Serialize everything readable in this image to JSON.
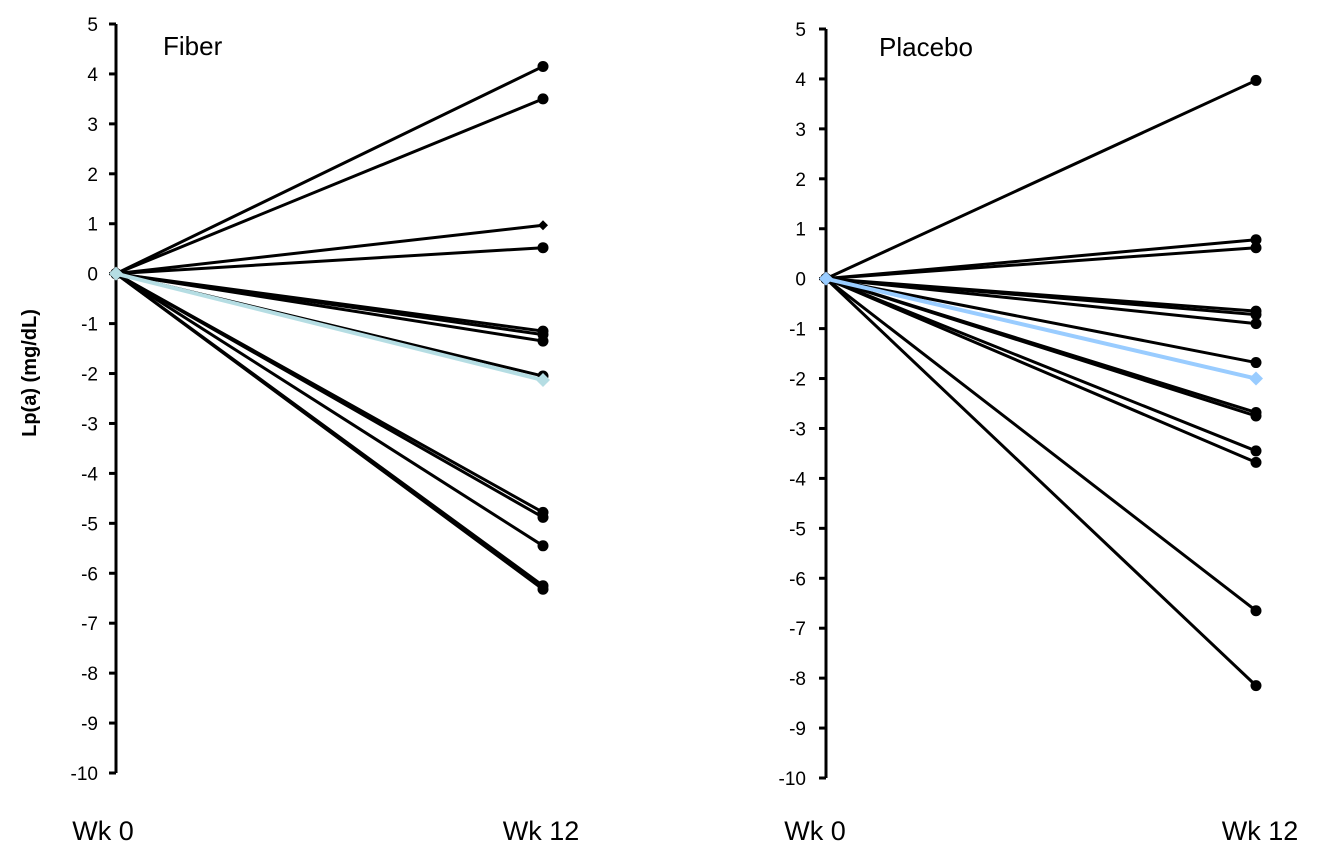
{
  "chart_data": [
    {
      "type": "line",
      "title": "Fiber",
      "ylabel": "Lp(a) (mg/dL)",
      "xlabel": "",
      "categories": [
        "Wk 0",
        "Wk 12"
      ],
      "ylim": [
        -10,
        5
      ],
      "yticks": [
        5,
        4,
        3,
        2,
        1,
        0,
        -1,
        -2,
        -3,
        -4,
        -5,
        -6,
        -7,
        -8,
        -9,
        -10
      ],
      "grid": false,
      "colors": {
        "individual": "#000000",
        "mean": "#b5dde3"
      },
      "series": [
        {
          "values": [
            0,
            4.15
          ],
          "marker": "circle"
        },
        {
          "values": [
            0,
            3.5
          ],
          "marker": "circle"
        },
        {
          "values": [
            0,
            0.97
          ],
          "marker": "diamond"
        },
        {
          "values": [
            0,
            0.52
          ],
          "marker": "circle"
        },
        {
          "values": [
            0,
            -1.15
          ],
          "marker": "circle"
        },
        {
          "values": [
            0,
            -1.22
          ],
          "marker": "circle"
        },
        {
          "values": [
            0,
            -1.35
          ],
          "marker": "circle"
        },
        {
          "values": [
            0,
            -2.05
          ],
          "marker": "circle"
        },
        {
          "values": [
            0,
            -4.78
          ],
          "marker": "circle"
        },
        {
          "values": [
            0,
            -4.88
          ],
          "marker": "circle"
        },
        {
          "values": [
            0,
            -5.45
          ],
          "marker": "circle"
        },
        {
          "values": [
            0,
            -6.25
          ],
          "marker": "circle"
        },
        {
          "values": [
            0,
            -6.32
          ],
          "marker": "circle"
        },
        {
          "values": [
            0,
            -2.13
          ],
          "marker": "diamond",
          "role": "mean"
        }
      ]
    },
    {
      "type": "line",
      "title": "Placebo",
      "ylabel": "",
      "xlabel": "",
      "categories": [
        "Wk 0",
        "Wk 12"
      ],
      "ylim": [
        -10,
        5
      ],
      "yticks": [
        5,
        4,
        3,
        2,
        1,
        0,
        -1,
        -2,
        -3,
        -4,
        -5,
        -6,
        -7,
        -8,
        -9,
        -10
      ],
      "grid": false,
      "colors": {
        "individual": "#000000",
        "mean": "#99ccff"
      },
      "series": [
        {
          "values": [
            0,
            3.97
          ],
          "marker": "circle"
        },
        {
          "values": [
            0,
            0.78
          ],
          "marker": "circle"
        },
        {
          "values": [
            0,
            0.62
          ],
          "marker": "circle"
        },
        {
          "values": [
            0,
            -0.65
          ],
          "marker": "circle"
        },
        {
          "values": [
            0,
            -0.72
          ],
          "marker": "circle"
        },
        {
          "values": [
            0,
            -0.9
          ],
          "marker": "circle"
        },
        {
          "values": [
            0,
            -1.68
          ],
          "marker": "circle"
        },
        {
          "values": [
            0,
            -2.68
          ],
          "marker": "circle"
        },
        {
          "values": [
            0,
            -2.75
          ],
          "marker": "circle"
        },
        {
          "values": [
            0,
            -3.45
          ],
          "marker": "circle"
        },
        {
          "values": [
            0,
            -3.68
          ],
          "marker": "circle"
        },
        {
          "values": [
            0,
            -6.65
          ],
          "marker": "circle"
        },
        {
          "values": [
            0,
            -8.15
          ],
          "marker": "circle"
        },
        {
          "values": [
            0,
            -2.0
          ],
          "marker": "diamond",
          "role": "mean"
        }
      ]
    }
  ]
}
